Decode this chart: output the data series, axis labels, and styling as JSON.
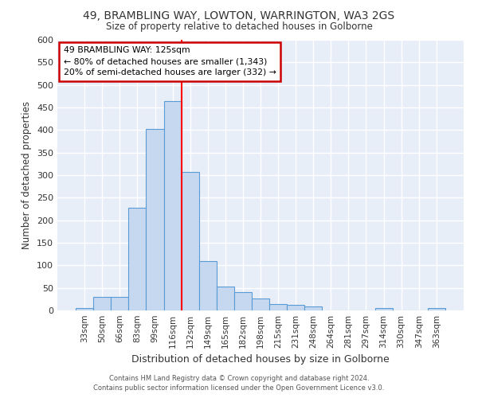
{
  "title1": "49, BRAMBLING WAY, LOWTON, WARRINGTON, WA3 2GS",
  "title2": "Size of property relative to detached houses in Golborne",
  "xlabel": "Distribution of detached houses by size in Golborne",
  "ylabel": "Number of detached properties",
  "footer1": "Contains HM Land Registry data © Crown copyright and database right 2024.",
  "footer2": "Contains public sector information licensed under the Open Government Licence v3.0.",
  "categories": [
    "33sqm",
    "50sqm",
    "66sqm",
    "83sqm",
    "99sqm",
    "116sqm",
    "132sqm",
    "149sqm",
    "165sqm",
    "182sqm",
    "198sqm",
    "215sqm",
    "231sqm",
    "248sqm",
    "264sqm",
    "281sqm",
    "297sqm",
    "314sqm",
    "330sqm",
    "347sqm",
    "363sqm"
  ],
  "values": [
    5,
    30,
    30,
    228,
    402,
    465,
    307,
    110,
    53,
    40,
    26,
    14,
    12,
    8,
    0,
    0,
    0,
    5,
    0,
    0,
    5
  ],
  "bar_color": "#c5d8f0",
  "bar_edge_color": "#5b9bd5",
  "fig_background": "#ffffff",
  "plot_background": "#e8eef8",
  "grid_color": "#ffffff",
  "red_line_x": 5.52,
  "annotation_line1": "49 BRAMBLING WAY: 125sqm",
  "annotation_line2": "← 80% of detached houses are smaller (1,343)",
  "annotation_line3": "20% of semi-detached houses are larger (332) →",
  "annotation_box_color": "#ffffff",
  "annotation_border_color": "#cc0000",
  "ylim": [
    0,
    600
  ],
  "yticks": [
    0,
    50,
    100,
    150,
    200,
    250,
    300,
    350,
    400,
    450,
    500,
    550,
    600
  ]
}
